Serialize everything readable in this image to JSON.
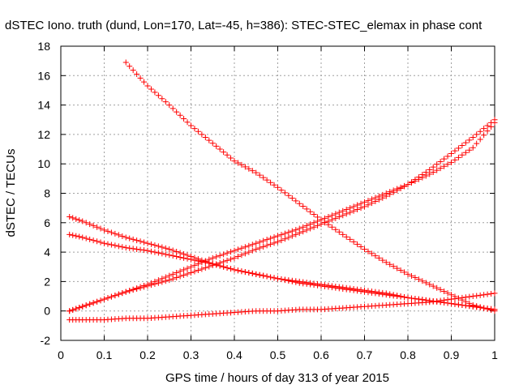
{
  "chart_data": {
    "type": "scatter",
    "title": "dSTEC Iono. truth (dund, Lon=170, Lat=-45, h=386): STEC-STEC_elemax in phase cont",
    "xlabel": "GPS time / hours of day 313 of year 2015",
    "ylabel": "dSTEC  / TECUs",
    "xlim": [
      0,
      1
    ],
    "ylim": [
      -2,
      18
    ],
    "xticks": [
      0,
      0.1,
      0.2,
      0.3,
      0.4,
      0.5,
      0.6,
      0.7,
      0.8,
      0.9,
      1
    ],
    "yticks": [
      -2,
      0,
      2,
      4,
      6,
      8,
      10,
      12,
      14,
      16,
      18
    ],
    "grid": true,
    "marker": "+",
    "color": "#ff0000",
    "series": [
      {
        "x": [
          0.15,
          0.2,
          0.25,
          0.3,
          0.35,
          0.4,
          0.45,
          0.5,
          0.55,
          0.6,
          0.65,
          0.7,
          0.75,
          0.8,
          0.85,
          0.9,
          0.95,
          1.0
        ],
        "values": [
          16.9,
          15.3,
          14.0,
          12.6,
          11.4,
          10.2,
          9.4,
          8.4,
          7.3,
          6.2,
          5.2,
          4.2,
          3.3,
          2.5,
          1.8,
          1.1,
          0.4,
          0.0
        ]
      },
      {
        "x": [
          0.02,
          0.05,
          0.1,
          0.15,
          0.2,
          0.25,
          0.3,
          0.35,
          0.4,
          0.45,
          0.5,
          0.55,
          0.6,
          0.65,
          0.7,
          0.75,
          0.8,
          0.85,
          0.9,
          0.95,
          1.0
        ],
        "values": [
          0.0,
          0.3,
          0.8,
          1.3,
          1.8,
          2.4,
          3.0,
          3.6,
          4.1,
          4.6,
          5.1,
          5.6,
          6.2,
          6.8,
          7.4,
          8.0,
          8.6,
          9.3,
          10.1,
          11.1,
          12.8
        ]
      },
      {
        "x": [
          0.02,
          0.05,
          0.1,
          0.15,
          0.2,
          0.25,
          0.3,
          0.35,
          0.4,
          0.45,
          0.5,
          0.55,
          0.6,
          0.65,
          0.7,
          0.75,
          0.8,
          0.85,
          0.9,
          0.95,
          1.0
        ],
        "values": [
          0.0,
          0.3,
          0.8,
          1.3,
          1.7,
          2.1,
          2.6,
          3.1,
          3.6,
          4.2,
          4.7,
          5.3,
          5.9,
          6.5,
          7.1,
          7.8,
          8.6,
          9.6,
          10.7,
          11.8,
          13.0
        ]
      },
      {
        "x": [
          0.02,
          0.05,
          0.1,
          0.15,
          0.2,
          0.25,
          0.3,
          0.35,
          0.4,
          0.45,
          0.5,
          0.55,
          0.6,
          0.65,
          0.7,
          0.75,
          0.8,
          0.85,
          0.9,
          0.95,
          1.0
        ],
        "values": [
          6.4,
          6.1,
          5.5,
          5.0,
          4.6,
          4.2,
          3.7,
          3.2,
          2.8,
          2.5,
          2.2,
          1.9,
          1.7,
          1.5,
          1.3,
          1.1,
          0.9,
          0.7,
          0.5,
          0.3,
          0.1
        ]
      },
      {
        "x": [
          0.02,
          0.05,
          0.1,
          0.15,
          0.2,
          0.25,
          0.3,
          0.35,
          0.4,
          0.45,
          0.5,
          0.55,
          0.6,
          0.65,
          0.7,
          0.75,
          0.8,
          0.85,
          0.9,
          0.95,
          1.0
        ],
        "values": [
          5.2,
          5.0,
          4.6,
          4.3,
          4.1,
          3.8,
          3.5,
          3.2,
          2.8,
          2.5,
          2.2,
          2.0,
          1.8,
          1.6,
          1.4,
          1.2,
          0.9,
          0.7,
          0.5,
          0.3,
          0.1
        ]
      },
      {
        "x": [
          0.02,
          0.05,
          0.1,
          0.15,
          0.2,
          0.25,
          0.3,
          0.35,
          0.4,
          0.45,
          0.5,
          0.55,
          0.6,
          0.65,
          0.7,
          0.75,
          0.8,
          0.85,
          0.9,
          0.95,
          1.0
        ],
        "values": [
          -0.6,
          -0.6,
          -0.6,
          -0.5,
          -0.5,
          -0.4,
          -0.3,
          -0.2,
          -0.1,
          0.0,
          0.0,
          0.1,
          0.1,
          0.2,
          0.3,
          0.4,
          0.5,
          0.6,
          0.8,
          1.0,
          1.2
        ]
      }
    ]
  }
}
